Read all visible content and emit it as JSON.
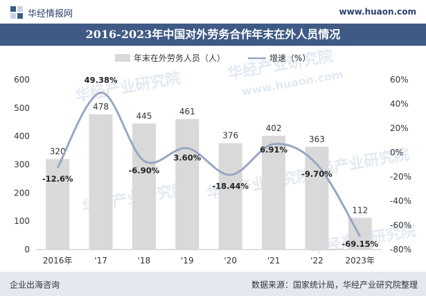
{
  "header": {
    "site_name": "华经情报网",
    "site_url": "www.huaon.com",
    "title": "2016-2023年中国对外劳务合作年末在外人员情况"
  },
  "footer": {
    "left": "企业出海咨询",
    "right": "数据来源：国家统计局，华经产业研究院整理"
  },
  "watermarks": [
    "华经产业研究院",
    "www.huaon.com"
  ],
  "colors": {
    "bar": "#d9d9d9",
    "line": "#97a6c4",
    "title_bg": "#3f5a85",
    "footer_bg": "#e4e9f1"
  },
  "chart_data": {
    "type": "bar",
    "title": "2016-2023年中国对外劳务合作年末在外人员情况",
    "categories": [
      "2016年",
      "'17",
      "'18",
      "'19",
      "'20",
      "'21",
      "'22",
      "2023年"
    ],
    "series": [
      {
        "name": "年末在外劳务人员（人）",
        "type": "bar",
        "axis": "left",
        "values": [
          320,
          478,
          445,
          461,
          376,
          402,
          363,
          112
        ],
        "labels": [
          "320",
          "478",
          "445",
          "461",
          "376",
          "402",
          "363",
          "112"
        ]
      },
      {
        "name": "增速（%）",
        "type": "line",
        "axis": "right",
        "values": [
          -12.6,
          49.38,
          -6.9,
          3.6,
          -18.44,
          6.91,
          -9.7,
          -69.15
        ],
        "labels": [
          "-12.6%",
          "49.38%",
          "-6.90%",
          "3.60%",
          "-18.44%",
          "6.91%",
          "-9.70%",
          "-69.15%"
        ]
      }
    ],
    "y_left": {
      "ylim": [
        0,
        600
      ],
      "ticks": [
        "0",
        "100",
        "200",
        "300",
        "400",
        "500",
        "600"
      ]
    },
    "y_right": {
      "ylim": [
        -80,
        60
      ],
      "ticks": [
        "-80%",
        "-60%",
        "-40%",
        "-20%",
        "0%",
        "20%",
        "40%",
        "60%"
      ]
    },
    "legend": "top-center",
    "grid": false
  }
}
